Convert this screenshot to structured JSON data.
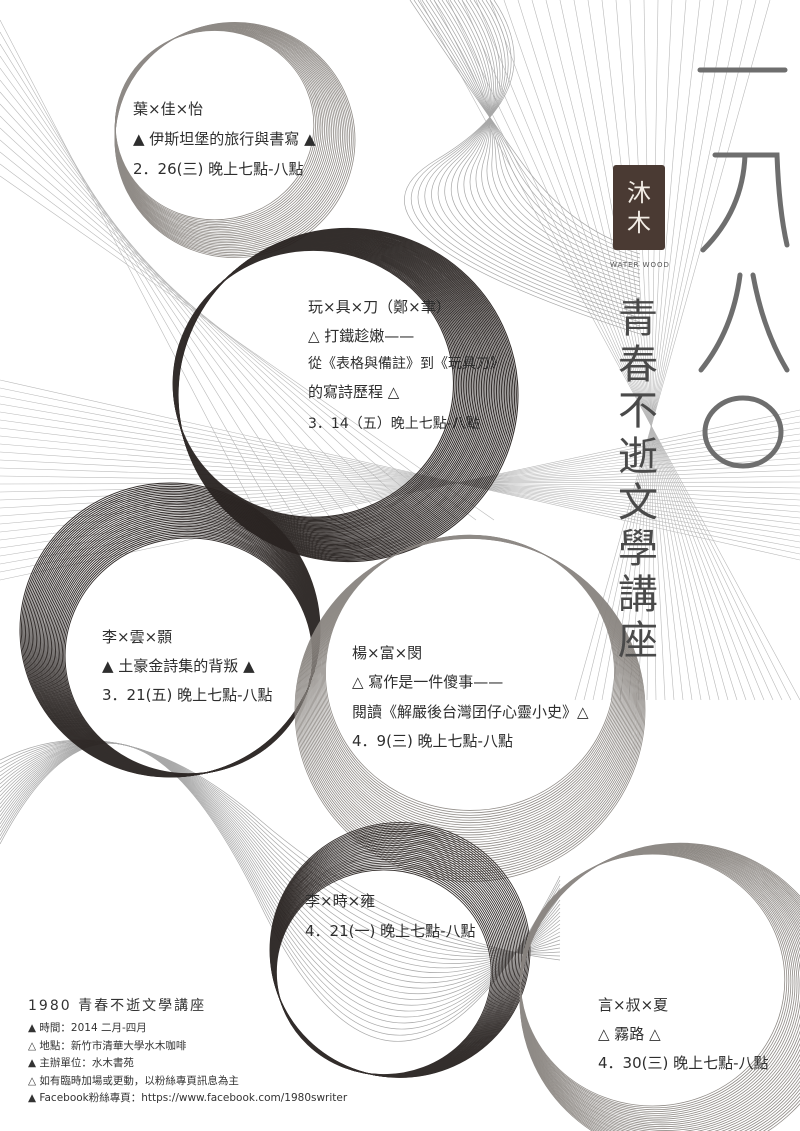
{
  "poster": {
    "year_vertical": "一九八〇",
    "title_vertical": "青春不逝文學講座",
    "logo": {
      "seal_chars": [
        "沐",
        "木"
      ],
      "seal_label": "水木",
      "caption": "WATER WOOD"
    }
  },
  "events": [
    {
      "speaker": "葉×佳×怡",
      "lines": [
        "▲ 伊斯坦堡的旅行與書寫 ▲",
        "2．26(三) 晚上七點-八點"
      ]
    },
    {
      "speaker": "玩×具×刀（鄭×聿）",
      "lines": [
        "△ 打鐵趁嫩——",
        "從《表格與備註》到《玩具刀》",
        "的寫詩歷程 △",
        "3．14（五）晚上七點-八點"
      ]
    },
    {
      "speaker": "李×雲×顥",
      "lines": [
        "▲ 土豪金詩集的背叛 ▲",
        "3．21(五) 晚上七點-八點"
      ]
    },
    {
      "speaker": "楊×富×閔",
      "lines": [
        "△ 寫作是一件傻事——",
        "閱讀《解嚴後台灣囝仔心靈小史》△",
        "4．9(三) 晚上七點-八點"
      ]
    },
    {
      "speaker": "李×時×雍",
      "lines": [
        "4．21(一) 晚上七點-八點"
      ]
    },
    {
      "speaker": "言×叔×夏",
      "lines": [
        "△ 霧路 △",
        "4．30(三) 晚上七點-八點"
      ]
    }
  ],
  "info": {
    "heading": "1980 青春不逝文學講座",
    "rows": [
      "▲ 時間：2014 二月-四月",
      "△ 地點：新竹市清華大學水木咖啡",
      "▲ 主辦單位：水木書苑",
      "△ 如有臨時加場或更動，以粉絲專頁訊息為主",
      "▲ Facebook粉絲專頁：https://www.facebook.com/1980swriter"
    ]
  },
  "colors": {
    "ink": "#2b2b2b",
    "title": "#4a4a4a",
    "dark_ring": "#2a2422",
    "light_ring": "#8a8580",
    "seal": "#4a3a33"
  }
}
